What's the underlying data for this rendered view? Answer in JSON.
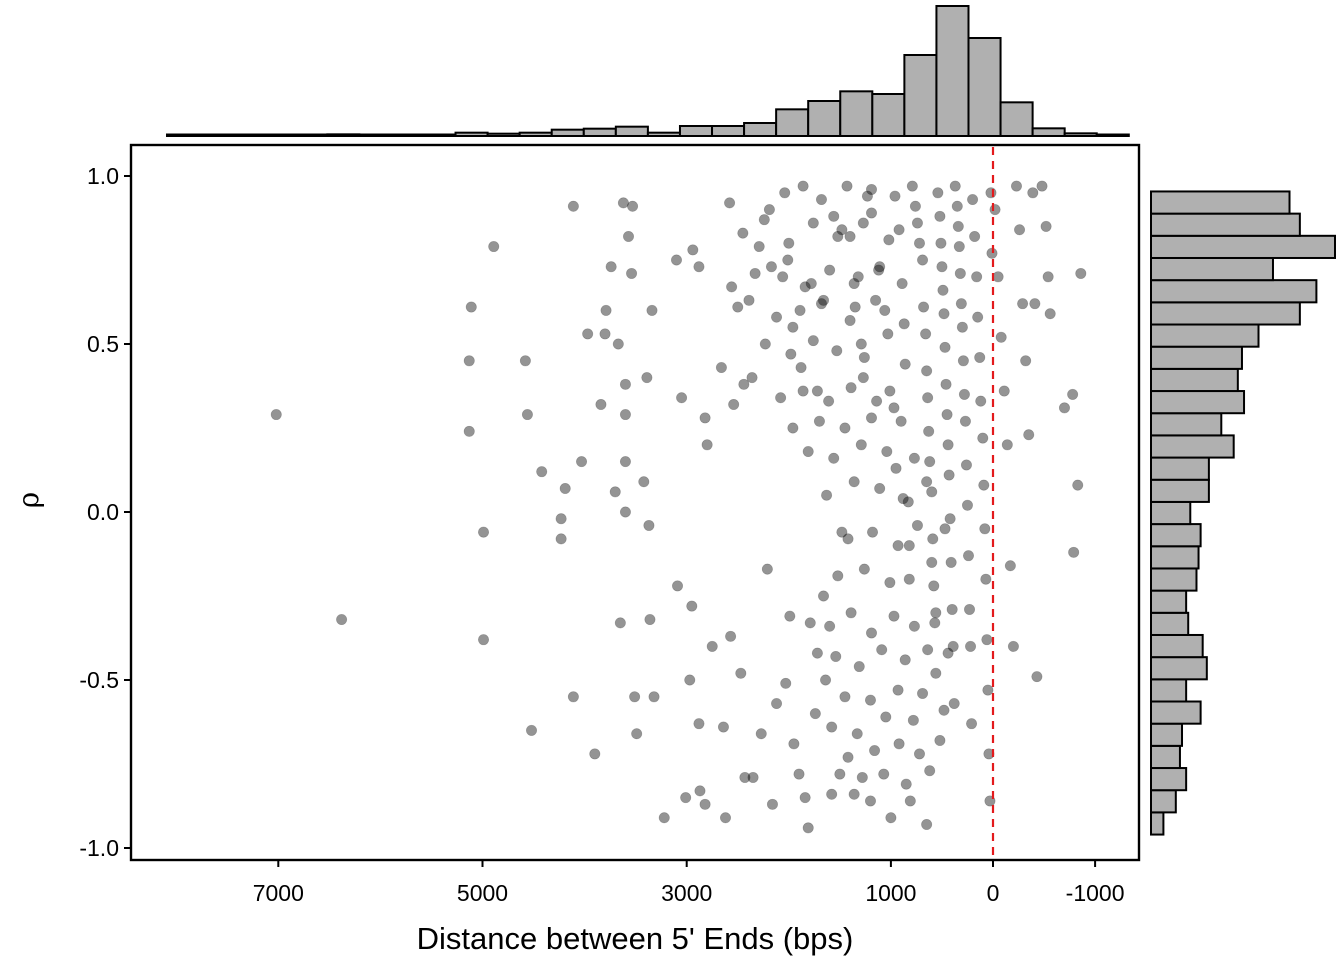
{
  "chart_data": {
    "type": "scatter",
    "xlabel": "Distance between 5' Ends (bps)",
    "ylabel": "ρ",
    "x_reversed": true,
    "xlim": [
      8300,
      -1400
    ],
    "ylim": [
      -1.04,
      1.09
    ],
    "x_ticks": [
      7000,
      5000,
      3000,
      1000,
      0,
      -1000
    ],
    "x_tick_labels": [
      "7000",
      "5000",
      "3000",
      "1000",
      "0",
      "-1000"
    ],
    "y_ticks": [
      1.0,
      0.5,
      0.0,
      -0.5,
      -1.0
    ],
    "y_tick_labels": [
      "1.0",
      "0.5",
      "0.0",
      "-0.5",
      "-1.0"
    ],
    "reference_line": {
      "x": 0,
      "color": "#e31a1c",
      "style": "dashed"
    },
    "grid": false,
    "point_color": "#000000",
    "point_opacity": 0.42,
    "bar_fill": "#b0b0b0",
    "points_listed": [
      [
        7020,
        0.29
      ],
      [
        6380,
        -0.32
      ],
      [
        5110,
        0.61
      ],
      [
        5130,
        0.45
      ],
      [
        5130,
        0.24
      ],
      [
        4990,
        -0.06
      ],
      [
        4990,
        -0.38
      ],
      [
        4890,
        0.79
      ],
      [
        4580,
        0.45
      ],
      [
        4560,
        0.29
      ],
      [
        4520,
        -0.65
      ],
      [
        4420,
        0.12
      ],
      [
        4230,
        -0.02
      ],
      [
        4230,
        -0.08
      ],
      [
        4190,
        0.07
      ],
      [
        4110,
        0.91
      ],
      [
        4110,
        -0.55
      ],
      [
        4030,
        0.15
      ],
      [
        3970,
        0.53
      ],
      [
        3900,
        -0.72
      ],
      [
        3840,
        0.32
      ],
      [
        3800,
        0.53
      ],
      [
        3790,
        0.6
      ],
      [
        3740,
        0.73
      ],
      [
        3700,
        0.06
      ],
      [
        3670,
        0.5
      ],
      [
        3650,
        -0.33
      ],
      [
        3620,
        0.92
      ],
      [
        3600,
        0.38
      ],
      [
        3600,
        0.29
      ],
      [
        3600,
        0.15
      ],
      [
        3600,
        0.0
      ],
      [
        3570,
        0.82
      ],
      [
        3540,
        0.71
      ],
      [
        3530,
        0.91
      ],
      [
        3510,
        -0.55
      ],
      [
        3490,
        -0.66
      ],
      [
        3420,
        0.09
      ],
      [
        3390,
        0.4
      ],
      [
        3370,
        -0.04
      ],
      [
        3360,
        -0.32
      ],
      [
        3320,
        -0.55
      ],
      [
        3340,
        0.6
      ],
      [
        3100,
        0.75
      ],
      [
        3090,
        -0.22
      ],
      [
        3050,
        0.34
      ],
      [
        2940,
        0.78
      ],
      [
        2950,
        -0.28
      ],
      [
        2880,
        0.73
      ],
      [
        2820,
        0.28
      ],
      [
        2800,
        0.2
      ],
      [
        2660,
        0.43
      ],
      [
        2540,
        0.32
      ],
      [
        2500,
        0.61
      ],
      [
        2440,
        0.38
      ],
      [
        2360,
        0.4
      ],
      [
        2290,
        0.79
      ],
      [
        2190,
        0.9
      ],
      [
        2170,
        0.73
      ],
      [
        2010,
        0.75
      ],
      [
        1960,
        0.55
      ],
      [
        1880,
        0.43
      ],
      [
        1780,
        0.68
      ],
      [
        1720,
        0.36
      ],
      [
        1680,
        0.62
      ],
      [
        1560,
        0.88
      ],
      [
        1480,
        0.84
      ],
      [
        1400,
        0.82
      ],
      [
        1350,
        0.61
      ],
      [
        1320,
        0.7
      ],
      [
        1290,
        0.5
      ],
      [
        1270,
        0.4
      ],
      [
        1230,
        0.94
      ],
      [
        1190,
        0.89
      ],
      [
        1120,
        0.72
      ],
      [
        1060,
        0.6
      ],
      [
        1010,
        0.36
      ],
      [
        970,
        0.31
      ],
      [
        950,
        0.13
      ],
      [
        920,
        0.84
      ],
      [
        890,
        0.68
      ],
      [
        870,
        0.56
      ],
      [
        860,
        0.44
      ],
      [
        830,
        0.03
      ],
      [
        820,
        -0.1
      ],
      [
        790,
        0.97
      ],
      [
        760,
        0.91
      ],
      [
        740,
        0.86
      ],
      [
        720,
        0.8
      ],
      [
        690,
        0.75
      ],
      [
        680,
        0.61
      ],
      [
        660,
        0.53
      ],
      [
        650,
        0.42
      ],
      [
        640,
        0.34
      ],
      [
        630,
        0.24
      ],
      [
        620,
        0.15
      ],
      [
        600,
        0.06
      ],
      [
        590,
        -0.08
      ],
      [
        580,
        -0.22
      ],
      [
        570,
        -0.33
      ],
      [
        560,
        -0.48
      ],
      [
        540,
        0.95
      ],
      [
        520,
        0.88
      ],
      [
        510,
        0.8
      ],
      [
        500,
        0.73
      ],
      [
        490,
        0.66
      ],
      [
        480,
        0.59
      ],
      [
        470,
        0.49
      ],
      [
        460,
        0.38
      ],
      [
        450,
        0.29
      ],
      [
        440,
        0.2
      ],
      [
        430,
        0.11
      ],
      [
        420,
        -0.02
      ],
      [
        410,
        -0.15
      ],
      [
        400,
        -0.29
      ],
      [
        390,
        -0.4
      ],
      [
        380,
        -0.57
      ],
      [
        370,
        0.97
      ],
      [
        350,
        0.91
      ],
      [
        340,
        0.85
      ],
      [
        330,
        0.79
      ],
      [
        320,
        0.71
      ],
      [
        310,
        0.62
      ],
      [
        300,
        0.55
      ],
      [
        290,
        0.45
      ],
      [
        280,
        0.35
      ],
      [
        270,
        0.27
      ],
      [
        260,
        0.14
      ],
      [
        250,
        0.02
      ],
      [
        240,
        -0.13
      ],
      [
        230,
        -0.29
      ],
      [
        220,
        -0.4
      ],
      [
        210,
        -0.63
      ],
      [
        200,
        0.93
      ],
      [
        180,
        0.82
      ],
      [
        160,
        0.7
      ],
      [
        150,
        0.58
      ],
      [
        130,
        0.46
      ],
      [
        120,
        0.33
      ],
      [
        100,
        0.22
      ],
      [
        90,
        0.08
      ],
      [
        80,
        -0.05
      ],
      [
        70,
        -0.2
      ],
      [
        60,
        -0.38
      ],
      [
        50,
        -0.53
      ],
      [
        40,
        -0.72
      ],
      [
        30,
        -0.86
      ],
      [
        20,
        0.95
      ],
      [
        10,
        0.77
      ],
      [
        -20,
        0.9
      ],
      [
        -50,
        0.7
      ],
      [
        -80,
        0.52
      ],
      [
        -110,
        0.36
      ],
      [
        -140,
        0.2
      ],
      [
        -170,
        -0.16
      ],
      [
        -200,
        -0.4
      ],
      [
        -230,
        0.97
      ],
      [
        -260,
        0.84
      ],
      [
        -290,
        0.62
      ],
      [
        -320,
        0.45
      ],
      [
        -350,
        0.23
      ],
      [
        -390,
        0.95
      ],
      [
        -410,
        0.62
      ],
      [
        -430,
        -0.49
      ],
      [
        -480,
        0.97
      ],
      [
        -520,
        0.85
      ],
      [
        -540,
        0.7
      ],
      [
        -560,
        0.59
      ],
      [
        -700,
        0.31
      ],
      [
        -780,
        0.35
      ],
      [
        -790,
        -0.12
      ],
      [
        -830,
        0.08
      ],
      [
        -860,
        0.71
      ],
      [
        1480,
        -0.06
      ],
      [
        1660,
        -0.25
      ],
      [
        1720,
        -0.42
      ],
      [
        1740,
        -0.6
      ],
      [
        1790,
        -0.33
      ],
      [
        1840,
        -0.85
      ],
      [
        1900,
        -0.78
      ],
      [
        1950,
        -0.69
      ],
      [
        1990,
        -0.31
      ],
      [
        2030,
        -0.51
      ],
      [
        2120,
        -0.57
      ],
      [
        2210,
        -0.17
      ],
      [
        2270,
        -0.66
      ],
      [
        2350,
        -0.79
      ],
      [
        2430,
        -0.79
      ],
      [
        2470,
        -0.48
      ],
      [
        2570,
        -0.37
      ],
      [
        2640,
        -0.64
      ],
      [
        2750,
        -0.4
      ],
      [
        2870,
        -0.83
      ],
      [
        2880,
        -0.63
      ],
      [
        2970,
        -0.5
      ],
      [
        3010,
        -0.85
      ],
      [
        3220,
        -0.91
      ],
      [
        2820,
        -0.87
      ],
      [
        2620,
        -0.91
      ],
      [
        2160,
        -0.87
      ],
      [
        1810,
        -0.94
      ],
      [
        1580,
        -0.84
      ],
      [
        1360,
        -0.84
      ],
      [
        1200,
        -0.86
      ],
      [
        1000,
        -0.91
      ],
      [
        810,
        -0.86
      ],
      [
        650,
        -0.93
      ],
      [
        1500,
        -0.78
      ],
      [
        1280,
        -0.79
      ],
      [
        1070,
        -0.78
      ],
      [
        850,
        -0.81
      ],
      [
        620,
        -0.77
      ],
      [
        1420,
        -0.73
      ],
      [
        1160,
        -0.71
      ],
      [
        920,
        -0.69
      ],
      [
        720,
        -0.72
      ],
      [
        520,
        -0.68
      ],
      [
        1580,
        -0.64
      ],
      [
        1330,
        -0.66
      ],
      [
        1050,
        -0.61
      ],
      [
        780,
        -0.62
      ],
      [
        480,
        -0.59
      ],
      [
        1640,
        -0.5
      ],
      [
        1450,
        -0.55
      ],
      [
        1200,
        -0.56
      ],
      [
        930,
        -0.53
      ],
      [
        690,
        -0.54
      ],
      [
        1540,
        -0.43
      ],
      [
        1310,
        -0.46
      ],
      [
        1090,
        -0.41
      ],
      [
        860,
        -0.44
      ],
      [
        640,
        -0.41
      ],
      [
        440,
        -0.42
      ],
      [
        1600,
        -0.34
      ],
      [
        1390,
        -0.3
      ],
      [
        1190,
        -0.36
      ],
      [
        970,
        -0.31
      ],
      [
        770,
        -0.34
      ],
      [
        560,
        -0.3
      ],
      [
        1520,
        -0.19
      ],
      [
        1260,
        -0.17
      ],
      [
        1010,
        -0.21
      ],
      [
        820,
        -0.2
      ],
      [
        600,
        -0.15
      ],
      [
        1420,
        -0.08
      ],
      [
        1180,
        -0.06
      ],
      [
        930,
        -0.1
      ],
      [
        740,
        -0.04
      ],
      [
        470,
        -0.05
      ],
      [
        1630,
        0.05
      ],
      [
        1360,
        0.09
      ],
      [
        1110,
        0.07
      ],
      [
        880,
        0.04
      ],
      [
        650,
        0.09
      ],
      [
        1810,
        0.18
      ],
      [
        1560,
        0.16
      ],
      [
        1290,
        0.2
      ],
      [
        1040,
        0.18
      ],
      [
        770,
        0.16
      ],
      [
        1960,
        0.25
      ],
      [
        1700,
        0.27
      ],
      [
        1450,
        0.25
      ],
      [
        1190,
        0.28
      ],
      [
        900,
        0.27
      ],
      [
        2080,
        0.34
      ],
      [
        1860,
        0.36
      ],
      [
        1610,
        0.33
      ],
      [
        1390,
        0.37
      ],
      [
        1140,
        0.33
      ],
      [
        2230,
        0.5
      ],
      [
        1980,
        0.47
      ],
      [
        1760,
        0.51
      ],
      [
        1530,
        0.48
      ],
      [
        1260,
        0.46
      ],
      [
        1030,
        0.53
      ],
      [
        2390,
        0.63
      ],
      [
        2120,
        0.58
      ],
      [
        1890,
        0.6
      ],
      [
        1660,
        0.63
      ],
      [
        1400,
        0.57
      ],
      [
        1150,
        0.63
      ],
      [
        2560,
        0.67
      ],
      [
        2330,
        0.71
      ],
      [
        2060,
        0.7
      ],
      [
        1840,
        0.67
      ],
      [
        1600,
        0.72
      ],
      [
        1360,
        0.68
      ],
      [
        1110,
        0.73
      ],
      [
        2450,
        0.83
      ],
      [
        2240,
        0.87
      ],
      [
        2000,
        0.8
      ],
      [
        1760,
        0.86
      ],
      [
        1520,
        0.82
      ],
      [
        1270,
        0.86
      ],
      [
        1020,
        0.81
      ],
      [
        2580,
        0.92
      ],
      [
        2040,
        0.95
      ],
      [
        1860,
        0.97
      ],
      [
        1680,
        0.93
      ],
      [
        1430,
        0.97
      ],
      [
        1190,
        0.96
      ],
      [
        960,
        0.94
      ]
    ],
    "scatter_dense_note": "",
    "top_histogram": {
      "bin_width": 314,
      "bin_start": 8090,
      "counts": [
        0.3,
        0.3,
        0.4,
        0.4,
        0.4,
        0.5,
        0.4,
        0.4,
        0.3,
        1.0,
        0.7,
        1.0,
        1.9,
        2.2,
        2.8,
        1.0,
        3.0,
        3.0,
        3.9,
        8.0,
        10.5,
        13.4,
        12.6,
        24.3,
        39.0,
        29.4,
        10.1,
        2.3,
        0.8,
        0.3
      ]
    },
    "right_histogram": {
      "bin_width": 0.066,
      "bin_start": -0.96,
      "counts": [
        6,
        12,
        17,
        14,
        15,
        24,
        17,
        27,
        25,
        18,
        17,
        22,
        23,
        24,
        19,
        28,
        28,
        40,
        34,
        45,
        42,
        44,
        52,
        72,
        80,
        59,
        89,
        72,
        67
      ]
    }
  }
}
